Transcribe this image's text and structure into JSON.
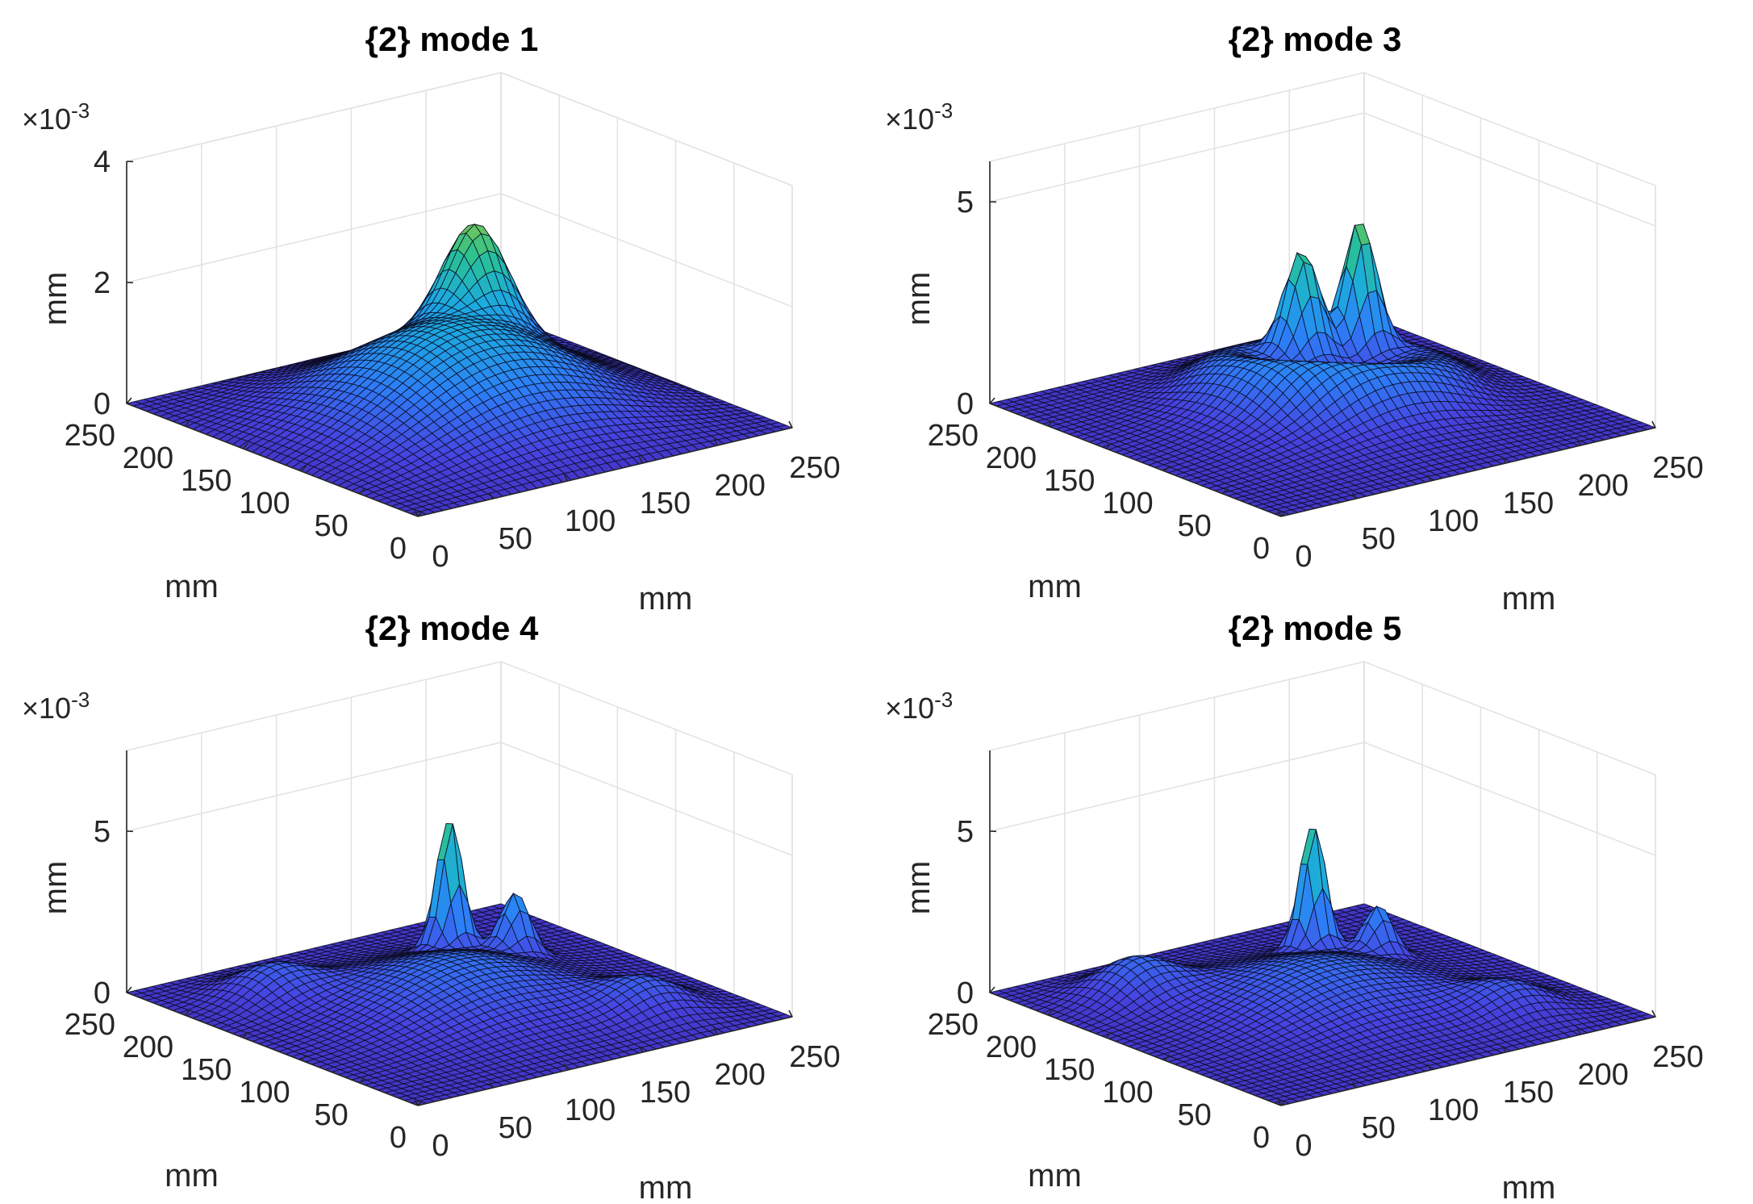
{
  "chart_data": [
    {
      "type": "surface",
      "title": "{2} mode 1",
      "xlabel": "mm",
      "ylabel": "mm",
      "zlabel": "mm",
      "z_exponent_label": "×10",
      "z_exponent_power": "-3",
      "xlim": [
        0,
        250
      ],
      "ylim": [
        0,
        250
      ],
      "zlim": [
        0,
        4
      ],
      "xticks": [
        "0",
        "50",
        "100",
        "150",
        "200",
        "250"
      ],
      "yticks": [
        "0",
        "50",
        "100",
        "150",
        "200",
        "250"
      ],
      "zticks": [
        "0",
        "2",
        "4"
      ],
      "surface_features": [
        {
          "kind": "base_dome",
          "x": 125,
          "y": 125,
          "amplitude": 1.5,
          "width": 70
        },
        {
          "kind": "peak",
          "x": 175,
          "y": 175,
          "amplitude": 2.3,
          "width": 18
        }
      ]
    },
    {
      "type": "surface",
      "title": "{2} mode 3",
      "xlabel": "mm",
      "ylabel": "mm",
      "zlabel": "mm",
      "z_exponent_label": "×10",
      "z_exponent_power": "-3",
      "xlim": [
        0,
        250
      ],
      "ylim": [
        0,
        250
      ],
      "zlim": [
        0,
        6
      ],
      "xticks": [
        "0",
        "50",
        "100",
        "150",
        "200",
        "250"
      ],
      "yticks": [
        "0",
        "50",
        "100",
        "150",
        "200",
        "250"
      ],
      "zticks": [
        "0",
        "5"
      ],
      "surface_features": [
        {
          "kind": "base_dome",
          "x": 125,
          "y": 125,
          "amplitude": 0.9,
          "width": 60
        },
        {
          "kind": "ring",
          "x": 150,
          "y": 150,
          "amplitude": 0.8,
          "radius": 60,
          "width": 18
        },
        {
          "kind": "peak",
          "x": 150,
          "y": 175,
          "amplitude": 3.2,
          "width": 10
        },
        {
          "kind": "peak",
          "x": 185,
          "y": 170,
          "amplitude": 4.3,
          "width": 9
        }
      ]
    },
    {
      "type": "surface",
      "title": "{2} mode 4",
      "xlabel": "mm",
      "ylabel": "mm",
      "zlabel": "mm",
      "z_exponent_label": "×10",
      "z_exponent_power": "-3",
      "xlim": [
        0,
        250
      ],
      "ylim": [
        0,
        250
      ],
      "zlim": [
        0,
        7.5
      ],
      "xticks": [
        "0",
        "50",
        "100",
        "150",
        "200",
        "250"
      ],
      "yticks": [
        "0",
        "50",
        "100",
        "150",
        "200",
        "250"
      ],
      "zticks": [
        "0",
        "5"
      ],
      "surface_features": [
        {
          "kind": "base_dome",
          "x": 125,
          "y": 125,
          "amplitude": 1.4,
          "width": 55
        },
        {
          "kind": "peak",
          "x": 50,
          "y": 200,
          "amplitude": 1.6,
          "width": 22
        },
        {
          "kind": "peak",
          "x": 200,
          "y": 50,
          "amplitude": 1.6,
          "width": 22
        },
        {
          "kind": "peak",
          "x": 165,
          "y": 185,
          "amplitude": 5.5,
          "width": 7
        },
        {
          "kind": "peak",
          "x": 190,
          "y": 160,
          "amplitude": 2.5,
          "width": 8
        }
      ]
    },
    {
      "type": "surface",
      "title": "{2} mode 5",
      "xlabel": "mm",
      "ylabel": "mm",
      "zlabel": "mm",
      "z_exponent_label": "×10",
      "z_exponent_power": "-3",
      "xlim": [
        0,
        250
      ],
      "ylim": [
        0,
        250
      ],
      "zlim": [
        0,
        7.5
      ],
      "xticks": [
        "0",
        "50",
        "100",
        "150",
        "200",
        "250"
      ],
      "yticks": [
        "0",
        "50",
        "100",
        "150",
        "200",
        "250"
      ],
      "zticks": [
        "0",
        "5"
      ],
      "surface_features": [
        {
          "kind": "base_dome",
          "x": 125,
          "y": 125,
          "amplitude": 1.3,
          "width": 55
        },
        {
          "kind": "peak",
          "x": 50,
          "y": 200,
          "amplitude": 2.0,
          "width": 22
        },
        {
          "kind": "peak",
          "x": 200,
          "y": 50,
          "amplitude": 1.4,
          "width": 22
        },
        {
          "kind": "peak",
          "x": 165,
          "y": 185,
          "amplitude": 5.3,
          "width": 7
        },
        {
          "kind": "peak",
          "x": 190,
          "y": 160,
          "amplitude": 2.0,
          "width": 8
        }
      ]
    }
  ],
  "colormap": [
    "#3e26a8",
    "#4743e0",
    "#2d7ef7",
    "#1caadf",
    "#2ac291",
    "#98c73b",
    "#f0ba3a",
    "#f9fb15"
  ]
}
